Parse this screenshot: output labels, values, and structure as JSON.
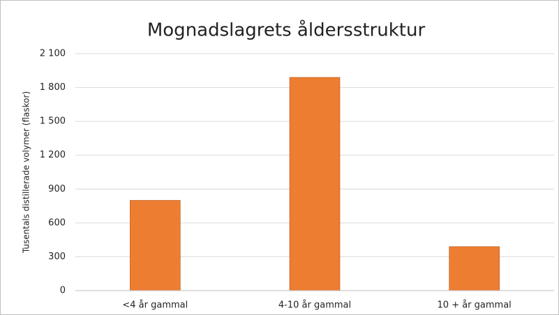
{
  "chart_data": {
    "type": "bar",
    "title": "Mognadslagrets åldersstruktur",
    "y_label": "Tusentals distillerade volymer (flaskor)",
    "categories": [
      "<4 år gammal",
      "4-10 år gammal",
      "10 + år gammal"
    ],
    "values": [
      800,
      1890,
      390
    ],
    "color": "#ed7d31",
    "ylim": [
      0,
      2100
    ],
    "yticks": [
      0,
      300,
      600,
      900,
      {
        "value": 1200,
        "label": "1 200"
      },
      {
        "value": 1500,
        "label": "1 500"
      },
      {
        "value": 1800,
        "label": "1 800"
      },
      {
        "value": 2100,
        "label": "2 100"
      }
    ],
    "grid": true
  }
}
